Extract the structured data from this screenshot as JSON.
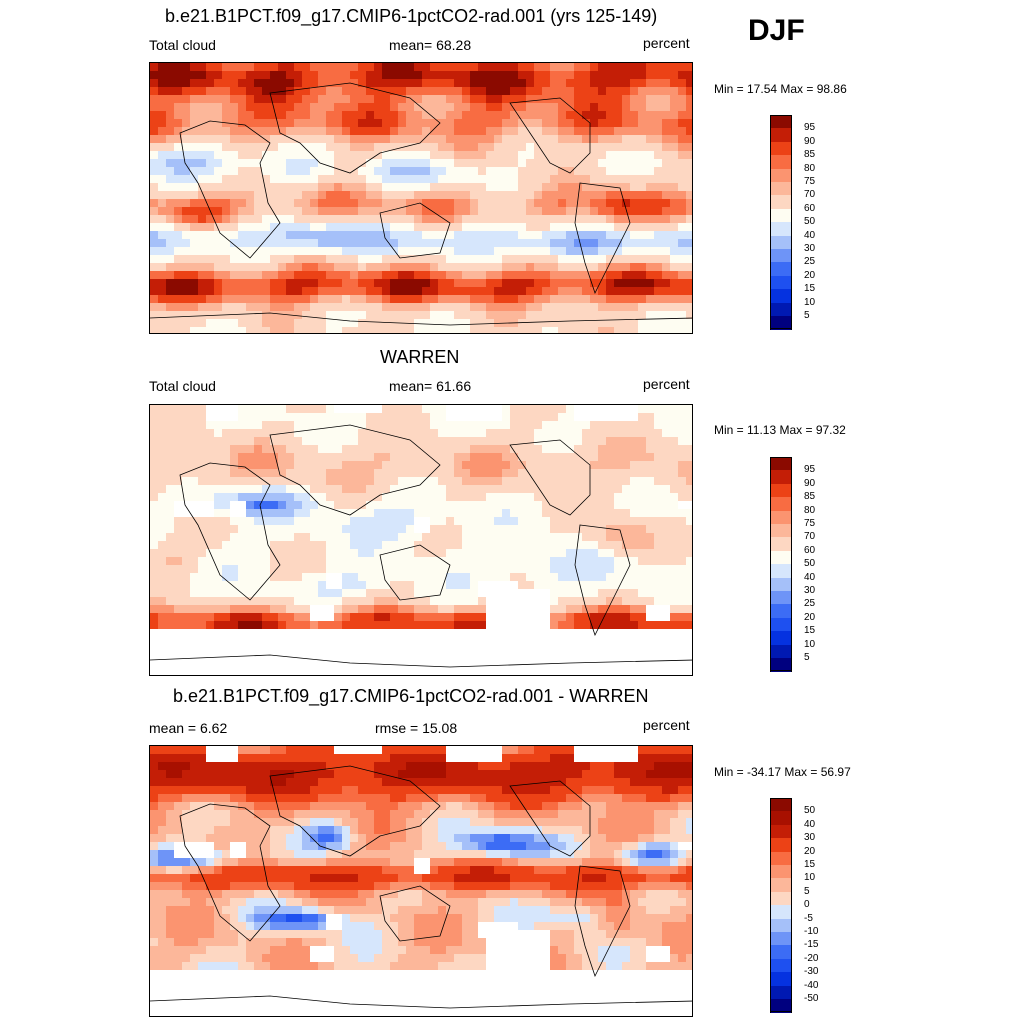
{
  "season": "DJF",
  "panels": [
    {
      "title": "b.e21.B1PCT.f09_g17.CMIP6-1pctCO2-rad.001 (yrs 125-149)",
      "left_label": "Total cloud",
      "center_label": "mean=  68.28",
      "right_label": "percent",
      "minmax": "Min =  17.54 Max =  98.86",
      "colorbar_labels": [
        "95",
        "90",
        "85",
        "80",
        "75",
        "70",
        "60",
        "50",
        "40",
        "30",
        "25",
        "20",
        "15",
        "10",
        "5"
      ]
    },
    {
      "title": "WARREN",
      "left_label": "Total cloud",
      "center_label": "mean=  61.66",
      "right_label": "percent",
      "minmax": "Min =  11.13 Max =  97.32",
      "colorbar_labels": [
        "95",
        "90",
        "85",
        "80",
        "75",
        "70",
        "60",
        "50",
        "40",
        "30",
        "25",
        "20",
        "15",
        "10",
        "5"
      ]
    },
    {
      "title": "b.e21.B1PCT.f09_g17.CMIP6-1pctCO2-rad.001 - WARREN",
      "left_label": "mean =   6.62",
      "center_label": "rmse =  15.08",
      "right_label": "percent",
      "minmax": "Min = -34.17 Max =  56.97",
      "colorbar_labels": [
        "50",
        "40",
        "30",
        "20",
        "15",
        "10",
        "5",
        "0",
        "-5",
        "-10",
        "-15",
        "-20",
        "-30",
        "-40",
        "-50"
      ]
    }
  ],
  "chart_data": {
    "type": "heatmap",
    "variable": "Total cloud",
    "units": "percent",
    "season": "DJF",
    "fields": [
      {
        "name": "b.e21.B1PCT.f09_g17.CMIP6-1pctCO2-rad.001 (yrs 125-149)",
        "mean": 68.28,
        "min": 17.54,
        "max": 98.86,
        "contour_levels": [
          5,
          10,
          15,
          20,
          25,
          30,
          40,
          50,
          60,
          70,
          75,
          80,
          85,
          90,
          95
        ]
      },
      {
        "name": "WARREN",
        "mean": 61.66,
        "min": 11.13,
        "max": 97.32,
        "contour_levels": [
          5,
          10,
          15,
          20,
          25,
          30,
          40,
          50,
          60,
          70,
          75,
          80,
          85,
          90,
          95
        ]
      },
      {
        "name": "b.e21.B1PCT.f09_g17.CMIP6-1pctCO2-rad.001 - WARREN",
        "mean": 6.62,
        "rmse": 15.08,
        "min": -34.17,
        "max": 56.97,
        "contour_levels": [
          -50,
          -40,
          -30,
          -20,
          -15,
          -10,
          -5,
          0,
          5,
          10,
          15,
          20,
          30,
          40,
          50
        ]
      }
    ],
    "colors_abs": [
      "#00007f",
      "#0019b2",
      "#0532e0",
      "#1e50f0",
      "#3c6cf5",
      "#6e94f7",
      "#a5c0f9",
      "#d6e6fc",
      "#fefdf2",
      "#fdd7c2",
      "#fcb79a",
      "#fb9470",
      "#f86c42",
      "#ec4216",
      "#c41e06",
      "#8b0a00"
    ],
    "colors_diff": [
      "#00007f",
      "#0019b2",
      "#0532e0",
      "#1e50f0",
      "#3c6cf5",
      "#6e94f7",
      "#a5c0f9",
      "#d6e6fc",
      "#fdd7c2",
      "#fcb79a",
      "#fb9470",
      "#f86c42",
      "#ec4216",
      "#c41e06",
      "#a81000",
      "#8b0a00"
    ]
  }
}
